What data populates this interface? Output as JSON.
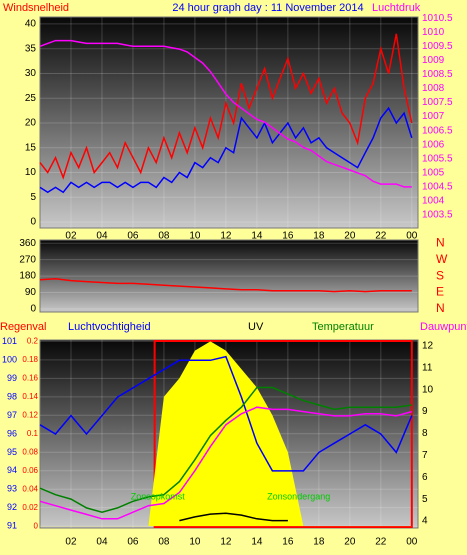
{
  "chart_data": [
    {
      "type": "line",
      "title": "24 hour graph day : 11 November 2014",
      "y_label": "Windsnelheid",
      "y2_label": "Luchtdruk",
      "x": [
        0,
        0.5,
        1,
        1.5,
        2,
        2.5,
        3,
        3.5,
        4,
        4.5,
        5,
        5.5,
        6,
        6.5,
        7,
        7.5,
        8,
        8.5,
        9,
        9.5,
        10,
        10.5,
        11,
        11.5,
        12,
        12.5,
        13,
        13.5,
        14,
        14.5,
        15,
        15.5,
        16,
        16.5,
        17,
        17.5,
        18,
        18.5,
        19,
        19.5,
        20,
        20.5,
        21,
        21.5,
        22,
        22.5,
        23,
        23.5,
        24
      ],
      "xlim": [
        0,
        24.4
      ],
      "xticks": [
        {
          "value": 2,
          "label": "02"
        },
        {
          "value": 4,
          "label": "04"
        },
        {
          "value": 6,
          "label": "06"
        },
        {
          "value": 8,
          "label": "08"
        },
        10,
        12,
        14,
        16,
        18,
        20,
        22,
        {
          "value": 24,
          "label": "00"
        }
      ],
      "ylim": [
        -1.2,
        41.4
      ],
      "yticks": [
        0,
        5,
        10,
        15,
        20,
        25,
        30,
        35,
        40
      ],
      "y2lim": [
        1003.04,
        1010.54
      ],
      "y2ticks": [
        1003.5,
        1004,
        1004.5,
        1005,
        1005.5,
        1006,
        1006.5,
        1007,
        1007.5,
        1008,
        1008.5,
        1009,
        1009.5,
        1010,
        1010.5
      ],
      "grid": true,
      "series": [
        {
          "color": "#ff0000",
          "axis": "y",
          "values": [
            12,
            10,
            13,
            9,
            14,
            11,
            15,
            10,
            12,
            14,
            11,
            16,
            13,
            10,
            15,
            12,
            17,
            13,
            18,
            14,
            19,
            15,
            21,
            17,
            24,
            20,
            28,
            23,
            27,
            31,
            25,
            29,
            33,
            27,
            30,
            26,
            29,
            24,
            27,
            22,
            20,
            16,
            25,
            28,
            35,
            30,
            38,
            27,
            20
          ]
        },
        {
          "color": "#0000ff",
          "axis": "y",
          "values": [
            7,
            6,
            7,
            6,
            8,
            7,
            8,
            7,
            8,
            8,
            7,
            8,
            7,
            8,
            8,
            7,
            9,
            8,
            10,
            9,
            12,
            11,
            13,
            12,
            15,
            14,
            21,
            19,
            17,
            20,
            16,
            18,
            20,
            17,
            19,
            16,
            17,
            15,
            14,
            13,
            12,
            11,
            14,
            17,
            21,
            23,
            20,
            22,
            17
          ]
        },
        {
          "color": "#ff00ff",
          "axis": "y2",
          "values": [
            1009.5,
            1009.6,
            1009.7,
            1009.7,
            1009.7,
            1009.65,
            1009.6,
            1009.6,
            1009.6,
            1009.6,
            1009.6,
            1009.55,
            1009.5,
            1009.5,
            1009.5,
            1009.5,
            1009.5,
            1009.45,
            1009.4,
            1009.3,
            1009.1,
            1008.9,
            1008.6,
            1008.2,
            1007.8,
            1007.5,
            1007.3,
            1007.1,
            1006.9,
            1006.8,
            1006.6,
            1006.4,
            1006.2,
            1006.1,
            1005.9,
            1005.8,
            1005.6,
            1005.4,
            1005.3,
            1005.2,
            1005.1,
            1005.0,
            1004.9,
            1004.7,
            1004.6,
            1004.6,
            1004.6,
            1004.5,
            1004.5
          ]
        }
      ]
    },
    {
      "type": "line",
      "x": [
        0,
        1,
        2,
        3,
        4,
        5,
        6,
        7,
        8,
        9,
        10,
        11,
        12,
        13,
        14,
        15,
        16,
        17,
        18,
        19,
        20,
        21,
        22,
        23,
        24
      ],
      "xlim": [
        0,
        24.4
      ],
      "ylim": [
        -17,
        378
      ],
      "yticks": [
        0,
        90,
        180,
        270,
        360
      ],
      "y2lim": [
        -17,
        378
      ],
      "y2ticks": [
        {
          "value": 360,
          "label": "N"
        },
        {
          "value": 270,
          "label": "W"
        },
        {
          "value": 180,
          "label": "S"
        },
        {
          "value": 90,
          "label": "E"
        },
        {
          "value": 0,
          "label": "N"
        }
      ],
      "grid": true,
      "series": [
        {
          "color": "#ff0000",
          "axis": "y",
          "values": [
            160,
            165,
            155,
            150,
            145,
            140,
            140,
            135,
            130,
            125,
            120,
            115,
            110,
            105,
            105,
            100,
            100,
            100,
            100,
            95,
            100,
            95,
            100,
            100,
            100
          ]
        }
      ]
    },
    {
      "type": "line",
      "y_label": "Regenval",
      "x": [
        0,
        1,
        2,
        3,
        4,
        5,
        6,
        7,
        8,
        9,
        10,
        11,
        12,
        13,
        14,
        15,
        16,
        17,
        18,
        19,
        20,
        21,
        22,
        23,
        24
      ],
      "xlim": [
        0,
        24.4
      ],
      "xticks": [
        {
          "value": 2,
          "label": "02"
        },
        {
          "value": 4,
          "label": "04"
        },
        {
          "value": 6,
          "label": "06"
        },
        {
          "value": 8,
          "label": "08"
        },
        10,
        12,
        14,
        16,
        18,
        20,
        22,
        {
          "value": 24,
          "label": "00"
        }
      ],
      "ylim": [
        -0.002,
        0.2015
      ],
      "yticks": [
        0,
        0.02,
        0.04,
        0.06,
        0.08,
        0.1,
        0.12,
        0.14,
        0.16,
        0.18,
        0.2
      ],
      "y3lim": [
        90.9,
        101.1
      ],
      "y3ticks": [
        91,
        92,
        93,
        94,
        95,
        96,
        97,
        98,
        99,
        100,
        101
      ],
      "y2lim": [
        3.68,
        12.27
      ],
      "y2ticks": [
        4,
        5,
        6,
        7,
        8,
        9,
        10,
        11,
        12
      ],
      "grid": true,
      "highlight": [
        7.4,
        24
      ],
      "annotations": [
        {
          "text": "Zonsopkomst",
          "x": 7.6
        },
        {
          "text": "Zonsondergang",
          "x": 16.7
        }
      ],
      "series": [
        {
          "color": "#ffff00",
          "axis": "y",
          "style": "area",
          "values": [
            0,
            0,
            0,
            0,
            0,
            0,
            0,
            0,
            0.14,
            0.16,
            0.19,
            0.2,
            0.19,
            0.17,
            0.15,
            0.12,
            0.08,
            0,
            0,
            0,
            0,
            0,
            0,
            0,
            0
          ]
        },
        {
          "name": "UV",
          "color": "#000000",
          "axis": "y",
          "values": [
            null,
            null,
            null,
            null,
            null,
            null,
            null,
            null,
            null,
            0.006,
            0.01,
            0.013,
            0.014,
            0.012,
            0.008,
            0.006,
            0.006,
            null,
            null,
            null,
            null,
            null,
            null,
            null,
            null
          ]
        },
        {
          "name": "Luchtvochtigheid",
          "color": "#0000ff",
          "axis": "y3",
          "values": [
            96.5,
            96,
            97,
            96,
            97,
            98,
            98.5,
            99,
            99.5,
            100,
            100,
            100,
            100.2,
            98,
            95.5,
            94,
            94,
            94,
            95,
            95.5,
            96,
            96.5,
            96,
            95,
            97
          ]
        },
        {
          "name": "Temperatuur",
          "color": "#008000",
          "axis": "y2",
          "values": [
            5.5,
            5.2,
            5.0,
            4.6,
            4.4,
            4.6,
            4.9,
            5.1,
            5.2,
            5.8,
            6.8,
            7.9,
            8.6,
            9.2,
            10.1,
            10.1,
            9.8,
            9.5,
            9.3,
            9.1,
            9.2,
            9.2,
            9.2,
            9.2,
            9.3
          ]
        },
        {
          "name": "Dauwpunt",
          "color": "#ff00ff",
          "axis": "y2",
          "values": [
            4.9,
            4.7,
            4.5,
            4.3,
            4.1,
            4.1,
            4.4,
            4.7,
            4.8,
            5.3,
            6.3,
            7.4,
            8.4,
            8.9,
            9.2,
            9.1,
            9.1,
            9.0,
            8.9,
            8.8,
            8.8,
            8.9,
            8.9,
            8.8,
            9.0
          ]
        }
      ]
    }
  ]
}
